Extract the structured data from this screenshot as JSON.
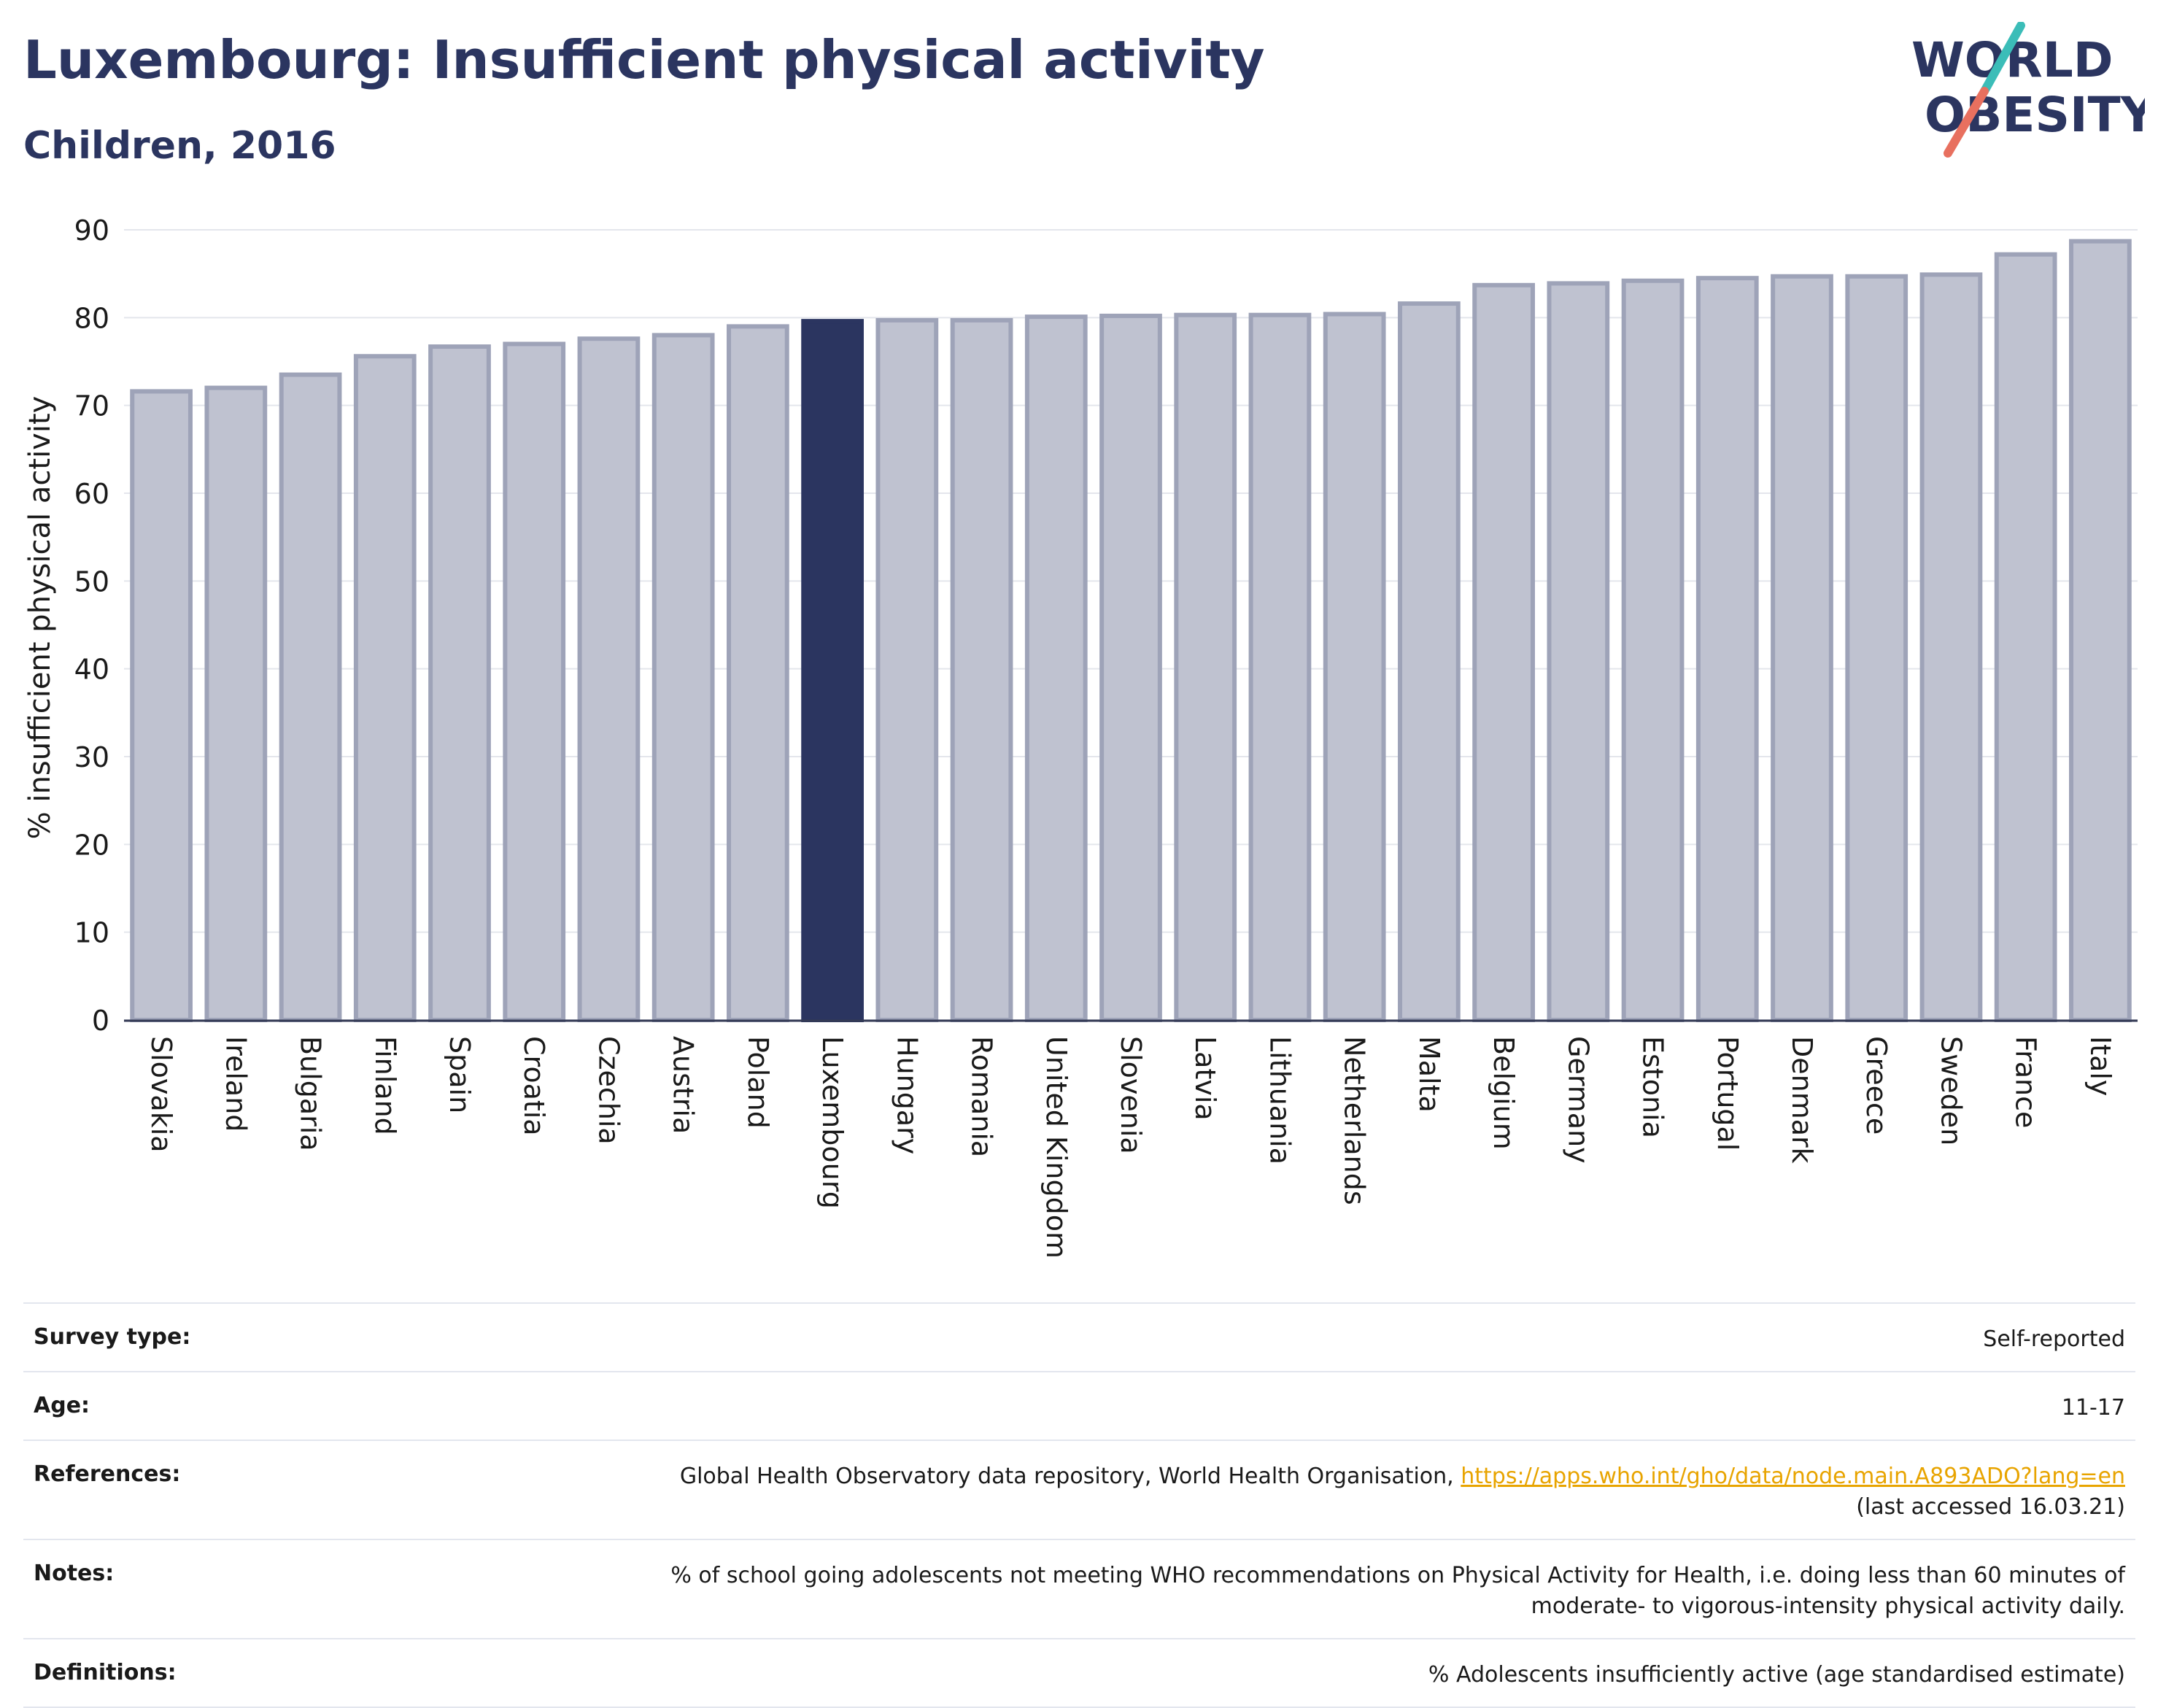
{
  "header": {
    "title": "Luxembourg: Insufficient physical activity",
    "subtitle": "Children, 2016"
  },
  "logo": {
    "line1": "WORLD",
    "line2": "OBESITY",
    "colors": {
      "text": "#2b3560",
      "slash_teal": "#3bbdb8",
      "slash_coral": "#e8705f"
    }
  },
  "chart_data": {
    "type": "bar",
    "title": "",
    "xlabel": "",
    "ylabel": "% insufficient physical activity",
    "ylim": [
      0,
      90
    ],
    "yticks": [
      0,
      10,
      20,
      30,
      40,
      50,
      60,
      70,
      80,
      90
    ],
    "grid": true,
    "highlight": "Luxembourg",
    "colors": {
      "bar": "#bfc2d0",
      "bar_edge": "#9ea3b8",
      "highlight": "#2b3560"
    },
    "categories": [
      "Slovakia",
      "Ireland",
      "Bulgaria",
      "Finland",
      "Spain",
      "Croatia",
      "Czechia",
      "Austria",
      "Poland",
      "Luxembourg",
      "Hungary",
      "Romania",
      "United Kingdom",
      "Slovenia",
      "Latvia",
      "Lithuania",
      "Netherlands",
      "Malta",
      "Belgium",
      "Germany",
      "Estonia",
      "Portugal",
      "Denmark",
      "Greece",
      "Sweden",
      "France",
      "Italy"
    ],
    "values": [
      71.6,
      72.0,
      73.5,
      75.6,
      76.7,
      77.0,
      77.6,
      78.0,
      79.0,
      79.6,
      79.7,
      79.7,
      80.1,
      80.2,
      80.3,
      80.3,
      80.4,
      81.6,
      83.7,
      83.9,
      84.2,
      84.5,
      84.7,
      84.7,
      84.9,
      87.2,
      88.7
    ]
  },
  "info": {
    "survey_type": {
      "label": "Survey type:",
      "value": "Self-reported"
    },
    "age": {
      "label": "Age:",
      "value": "11-17"
    },
    "references": {
      "label": "References:",
      "text": "Global Health Observatory data repository, World Health Organisation,",
      "link": "https://apps.who.int/gho/data/node.main.A893ADO?lang=en",
      "accessed": "(last accessed 16.03.21)"
    },
    "notes": {
      "label": "Notes:",
      "line1": "% of school going adolescents not meeting WHO recommendations on Physical Activity for Health, i.e. doing less than 60 minutes of",
      "line2": "moderate- to vigorous-intensity physical activity daily."
    },
    "definitions": {
      "label": "Definitions:",
      "value": "% Adolescents insufficiently active (age standardised estimate)"
    }
  }
}
